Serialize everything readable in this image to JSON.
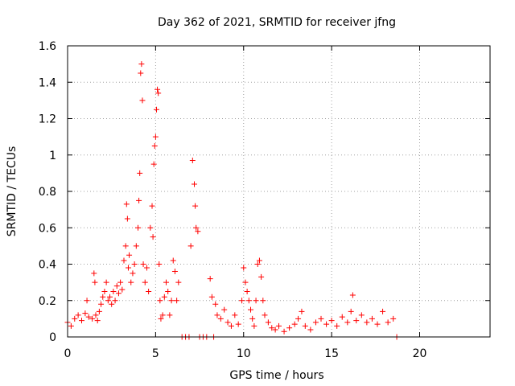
{
  "chart_data": {
    "type": "scatter",
    "title": "Day 362 of 2021, SRMTID for receiver jfng",
    "xlabel": "GPS time / hours",
    "ylabel": "SRMTID / TECUs",
    "xlim": [
      0,
      24
    ],
    "ylim": [
      0,
      1.6
    ],
    "xticks": [
      0,
      5,
      10,
      15,
      20
    ],
    "xtick_labels": [
      "0",
      "5",
      "10",
      "15",
      "20"
    ],
    "yticks": [
      0,
      0.2,
      0.4,
      0.6,
      0.8,
      1.0,
      1.2,
      1.4,
      1.6
    ],
    "ytick_labels": [
      "0",
      "0.2",
      "0.4",
      "0.6",
      "0.8",
      "1",
      "1.2",
      "1.4",
      "1.6"
    ],
    "grid": true,
    "marker": "+",
    "color": "#ff0000",
    "series": [
      {
        "name": "SRMTID",
        "x": [
          0.0,
          0.2,
          0.4,
          0.6,
          0.8,
          1.0,
          1.1,
          1.2,
          1.4,
          1.5,
          1.55,
          1.6,
          1.7,
          1.8,
          1.9,
          2.0,
          2.1,
          2.2,
          2.3,
          2.4,
          2.5,
          2.6,
          2.7,
          2.8,
          2.9,
          3.0,
          3.1,
          3.2,
          3.3,
          3.35,
          3.4,
          3.45,
          3.5,
          3.6,
          3.7,
          3.8,
          3.9,
          4.0,
          4.05,
          4.1,
          4.15,
          4.2,
          4.25,
          4.3,
          4.4,
          4.5,
          4.6,
          4.7,
          4.8,
          4.85,
          4.9,
          4.95,
          5.0,
          5.05,
          5.1,
          5.15,
          5.2,
          5.25,
          5.3,
          5.4,
          5.5,
          5.6,
          5.7,
          5.8,
          5.9,
          6.0,
          6.1,
          6.2,
          6.3,
          6.5,
          6.7,
          6.9,
          7.0,
          7.1,
          7.2,
          7.25,
          7.3,
          7.4,
          7.5,
          7.7,
          7.9,
          8.1,
          8.2,
          8.3,
          8.4,
          8.5,
          8.7,
          8.9,
          9.1,
          9.3,
          9.5,
          9.7,
          9.9,
          10.0,
          10.1,
          10.2,
          10.3,
          10.4,
          10.5,
          10.6,
          10.7,
          10.8,
          10.9,
          11.0,
          11.1,
          11.2,
          11.4,
          11.6,
          11.8,
          12.0,
          12.3,
          12.6,
          12.9,
          13.1,
          13.3,
          13.5,
          13.8,
          14.1,
          14.4,
          14.7,
          15.0,
          15.3,
          15.6,
          15.9,
          16.1,
          16.2,
          16.4,
          16.7,
          17.0,
          17.3,
          17.6,
          17.9,
          18.2,
          18.5,
          18.7
        ],
        "y": [
          0.08,
          0.06,
          0.1,
          0.12,
          0.09,
          0.13,
          0.2,
          0.11,
          0.1,
          0.35,
          0.3,
          0.12,
          0.09,
          0.14,
          0.18,
          0.22,
          0.25,
          0.3,
          0.2,
          0.22,
          0.18,
          0.25,
          0.2,
          0.28,
          0.24,
          0.3,
          0.26,
          0.42,
          0.5,
          0.73,
          0.65,
          0.38,
          0.45,
          0.3,
          0.35,
          0.4,
          0.5,
          0.6,
          0.75,
          0.9,
          1.45,
          1.5,
          1.3,
          0.4,
          0.3,
          0.38,
          0.25,
          0.6,
          0.72,
          0.55,
          0.95,
          1.05,
          1.1,
          1.25,
          1.36,
          1.34,
          0.4,
          0.2,
          0.1,
          0.12,
          0.22,
          0.3,
          0.25,
          0.12,
          0.2,
          0.42,
          0.36,
          0.2,
          0.3,
          0.0,
          0.0,
          0.0,
          0.5,
          0.97,
          0.84,
          0.72,
          0.6,
          0.58,
          0.0,
          0.0,
          0.0,
          0.32,
          0.22,
          0.0,
          0.18,
          0.12,
          0.1,
          0.15,
          0.08,
          0.06,
          0.12,
          0.07,
          0.2,
          0.38,
          0.3,
          0.25,
          0.2,
          0.15,
          0.1,
          0.06,
          0.2,
          0.4,
          0.42,
          0.33,
          0.2,
          0.12,
          0.08,
          0.05,
          0.04,
          0.06,
          0.03,
          0.05,
          0.07,
          0.1,
          0.14,
          0.06,
          0.04,
          0.08,
          0.1,
          0.07,
          0.09,
          0.06,
          0.11,
          0.08,
          0.14,
          0.23,
          0.09,
          0.12,
          0.08,
          0.1,
          0.07,
          0.14,
          0.08,
          0.1,
          0.0
        ]
      }
    ]
  }
}
